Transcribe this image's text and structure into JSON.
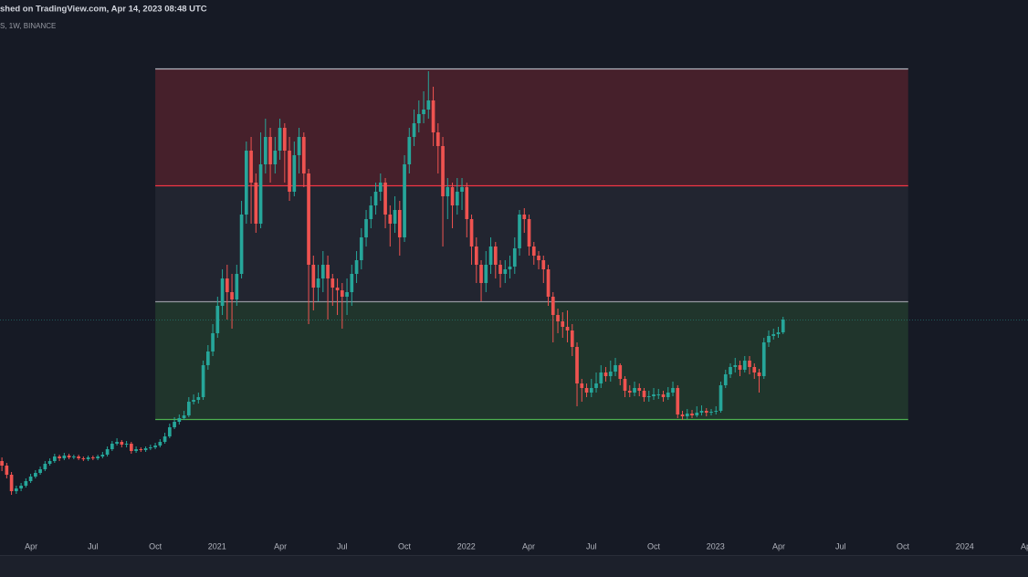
{
  "chart_data": {
    "type": "candlestick",
    "title": "shed on TradingView.com, Apr 14, 2023 08:48 UTC",
    "subtitle": "S, 1W, BINANCE",
    "up_color": "#26a69a",
    "down_color": "#ef5350",
    "xlim": [
      -0.4,
      214.1
    ],
    "ylim": [
      0,
      590
    ],
    "xticks": [
      {
        "value": 6.1,
        "label": "Apr"
      },
      {
        "value": 19.0,
        "label": "Jul"
      },
      {
        "value": 32.0,
        "label": "Oct"
      },
      {
        "value": 44.9,
        "label": "2021"
      },
      {
        "value": 58.1,
        "label": "Apr"
      },
      {
        "value": 71.0,
        "label": "Jul"
      },
      {
        "value": 84.0,
        "label": "Oct"
      },
      {
        "value": 96.9,
        "label": "2022"
      },
      {
        "value": 109.9,
        "label": "Apr"
      },
      {
        "value": 123.0,
        "label": "Jul"
      },
      {
        "value": 136.0,
        "label": "Oct"
      },
      {
        "value": 148.9,
        "label": "2023"
      },
      {
        "value": 162.1,
        "label": "Apr"
      },
      {
        "value": 175.0,
        "label": "Jul"
      },
      {
        "value": 188.0,
        "label": "Oct"
      },
      {
        "value": 200.9,
        "label": "2024"
      },
      {
        "value": 213.9,
        "label": "Apr"
      }
    ],
    "zone_x": [
      32.0,
      189.1
    ],
    "levels": [
      {
        "value": 515,
        "color": "#b2b5be"
      },
      {
        "value": 387,
        "color": "#f23645"
      },
      {
        "value": 260,
        "color": "#9598a1"
      },
      {
        "value": 131,
        "color": "#4caf50"
      }
    ],
    "zone_fills": [
      "rgba(242,54,69,0.22)",
      "rgba(120,123,134,0.12)",
      "rgba(76,175,80,0.18)"
    ],
    "price_line_color": "rgba(38,166,154,0.45)",
    "open": [
      85,
      80,
      70,
      52,
      55,
      58,
      63,
      68,
      72,
      76,
      82,
      85,
      90,
      88,
      91,
      89,
      90,
      88,
      87,
      89,
      88,
      90,
      92,
      98,
      104,
      106,
      103,
      104,
      96,
      98,
      97,
      99,
      100,
      102,
      106,
      112,
      122,
      128,
      132,
      135,
      150,
      152,
      155,
      190,
      205,
      225,
      255,
      285,
      270,
      262,
      290,
      355,
      425,
      390,
      345,
      410,
      440,
      410,
      425,
      450,
      425,
      380,
      420,
      440,
      400,
      300,
      275,
      285,
      300,
      285,
      275,
      272,
      265,
      270,
      290,
      305,
      330,
      350,
      365,
      380,
      390,
      355,
      345,
      360,
      330,
      410,
      440,
      455,
      465,
      470,
      480,
      445,
      430,
      375,
      385,
      365,
      380,
      385,
      350,
      320,
      300,
      280,
      300,
      320,
      300,
      290,
      295,
      298,
      318,
      355,
      350,
      320,
      310,
      305,
      295,
      265,
      245,
      238,
      232,
      228,
      210,
      170,
      165,
      160,
      165,
      170,
      182,
      178,
      183,
      190,
      175,
      162,
      160,
      165,
      162,
      155,
      156,
      158,
      158,
      155,
      160,
      165,
      136,
      134,
      137,
      135,
      138,
      140,
      138,
      139,
      140,
      168,
      180,
      188,
      190,
      185,
      195,
      188,
      182,
      178,
      215,
      222,
      224,
      226
    ],
    "high": [
      89,
      83,
      73,
      58,
      61,
      66,
      71,
      75,
      79,
      85,
      88,
      93,
      92,
      94,
      93,
      92,
      92,
      90,
      91,
      91,
      92,
      95,
      101,
      107,
      110,
      108,
      107,
      106,
      101,
      100,
      101,
      103,
      105,
      109,
      116,
      126,
      133,
      136,
      140,
      155,
      158,
      160,
      195,
      212,
      235,
      265,
      295,
      300,
      290,
      300,
      370,
      435,
      440,
      400,
      445,
      460,
      450,
      440,
      460,
      455,
      440,
      435,
      450,
      445,
      405,
      310,
      300,
      315,
      310,
      290,
      285,
      280,
      285,
      300,
      315,
      340,
      360,
      375,
      390,
      400,
      395,
      365,
      375,
      370,
      420,
      450,
      470,
      480,
      490,
      512,
      495,
      455,
      440,
      395,
      390,
      395,
      395,
      390,
      355,
      330,
      305,
      315,
      330,
      325,
      305,
      305,
      310,
      330,
      360,
      362,
      355,
      325,
      315,
      310,
      300,
      270,
      252,
      248,
      250,
      235,
      215,
      175,
      170,
      175,
      182,
      190,
      188,
      195,
      198,
      192,
      178,
      168,
      172,
      170,
      165,
      162,
      165,
      164,
      162,
      166,
      172,
      168,
      140,
      142,
      141,
      145,
      146,
      143,
      142,
      145,
      172,
      185,
      192,
      198,
      195,
      200,
      200,
      192,
      186,
      220,
      228,
      230,
      232,
      243
    ],
    "low": [
      74,
      66,
      48,
      49,
      52,
      56,
      61,
      66,
      70,
      74,
      80,
      83,
      85,
      86,
      87,
      87,
      86,
      85,
      85,
      86,
      86,
      88,
      90,
      96,
      102,
      100,
      100,
      93,
      94,
      95,
      95,
      97,
      98,
      100,
      104,
      110,
      120,
      125,
      130,
      133,
      147,
      148,
      152,
      185,
      200,
      220,
      245,
      240,
      230,
      255,
      285,
      345,
      345,
      335,
      340,
      400,
      390,
      400,
      415,
      390,
      370,
      375,
      400,
      385,
      235,
      250,
      260,
      270,
      240,
      255,
      245,
      230,
      245,
      255,
      280,
      295,
      320,
      340,
      355,
      370,
      340,
      320,
      335,
      310,
      325,
      400,
      430,
      445,
      455,
      460,
      430,
      400,
      320,
      350,
      340,
      355,
      360,
      330,
      300,
      280,
      260,
      270,
      290,
      285,
      275,
      280,
      285,
      290,
      310,
      335,
      310,
      300,
      295,
      280,
      255,
      215,
      225,
      220,
      215,
      200,
      145,
      150,
      155,
      155,
      160,
      165,
      172,
      172,
      178,
      168,
      155,
      155,
      156,
      156,
      150,
      150,
      152,
      153,
      150,
      152,
      156,
      132,
      130,
      131,
      132,
      133,
      135,
      134,
      135,
      136,
      138,
      165,
      176,
      182,
      178,
      182,
      180,
      175,
      160,
      175,
      210,
      218,
      220,
      224
    ],
    "close": [
      80,
      70,
      52,
      55,
      58,
      63,
      68,
      72,
      76,
      82,
      85,
      90,
      88,
      91,
      89,
      90,
      88,
      87,
      89,
      88,
      90,
      92,
      98,
      104,
      106,
      103,
      104,
      96,
      98,
      97,
      99,
      100,
      102,
      106,
      112,
      122,
      128,
      132,
      135,
      150,
      152,
      155,
      190,
      205,
      225,
      255,
      285,
      270,
      262,
      290,
      355,
      425,
      390,
      345,
      410,
      440,
      410,
      425,
      450,
      425,
      380,
      420,
      440,
      400,
      300,
      275,
      285,
      300,
      285,
      275,
      272,
      265,
      270,
      290,
      305,
      330,
      350,
      365,
      380,
      390,
      355,
      345,
      360,
      330,
      410,
      440,
      455,
      465,
      470,
      480,
      445,
      430,
      375,
      385,
      365,
      380,
      385,
      350,
      320,
      300,
      280,
      300,
      320,
      300,
      290,
      295,
      298,
      318,
      355,
      350,
      320,
      310,
      305,
      295,
      265,
      245,
      238,
      232,
      228,
      210,
      170,
      165,
      160,
      165,
      170,
      182,
      178,
      183,
      190,
      175,
      162,
      160,
      165,
      162,
      155,
      156,
      158,
      158,
      155,
      160,
      165,
      136,
      134,
      137,
      135,
      138,
      140,
      138,
      139,
      140,
      168,
      180,
      188,
      190,
      185,
      195,
      188,
      182,
      178,
      215,
      222,
      224,
      226,
      240
    ]
  }
}
